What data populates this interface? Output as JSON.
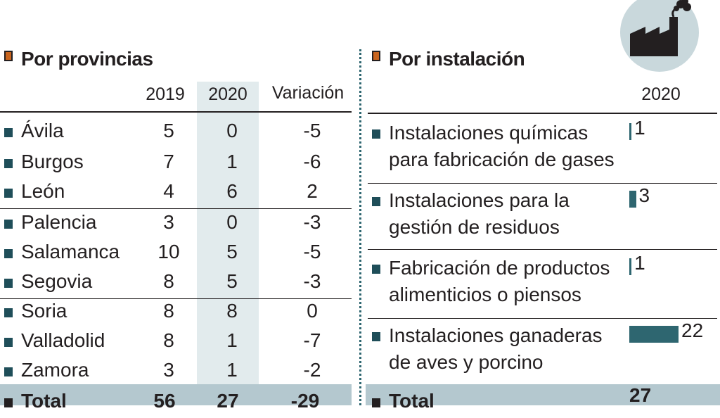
{
  "left": {
    "title": "Por provincias",
    "columns": [
      "2019",
      "2020",
      "Variación"
    ],
    "rows": [
      {
        "name": "Ávila",
        "y2019": "5",
        "y2020": "0",
        "var": "-5"
      },
      {
        "name": "Burgos",
        "y2019": "7",
        "y2020": "1",
        "var": "-6"
      },
      {
        "name": "León",
        "y2019": "4",
        "y2020": "6",
        "var": "2"
      },
      {
        "name": "Palencia",
        "y2019": "3",
        "y2020": "0",
        "var": "-3"
      },
      {
        "name": "Salamanca",
        "y2019": "10",
        "y2020": "5",
        "var": "-5"
      },
      {
        "name": "Segovia",
        "y2019": "8",
        "y2020": "5",
        "var": "-3"
      },
      {
        "name": "Soria",
        "y2019": "8",
        "y2020": "8",
        "var": "0"
      },
      {
        "name": "Valladolid",
        "y2019": "8",
        "y2020": "1",
        "var": "-7"
      },
      {
        "name": "Zamora",
        "y2019": "3",
        "y2020": "1",
        "var": "-2"
      }
    ],
    "total": {
      "name": "Total",
      "y2019": "56",
      "y2020": "27",
      "var": "-29"
    }
  },
  "right": {
    "title": "Por instalación",
    "column": "2020",
    "total": {
      "name": "Total",
      "value": "27"
    }
  },
  "colors": {
    "bar": "#2e6670",
    "header_square": "#c8641e",
    "highlight_column": "#e2ebed",
    "total_band": "#b4c8cf",
    "icon_circle": "#c9d8dc"
  },
  "chart_data": {
    "type": "bar",
    "orientation": "horizontal",
    "categories": [
      "Instalaciones químicas para fabricación de gases",
      "Instalaciones para la gestión de residuos",
      "Fabricación de productos alimenticios o piensos",
      "Instalaciones ganaderas de aves y porcino"
    ],
    "values": [
      1,
      3,
      1,
      22
    ],
    "title": "Por instalación",
    "xlabel": "",
    "ylabel": "",
    "xlim": [
      0,
      22
    ]
  }
}
